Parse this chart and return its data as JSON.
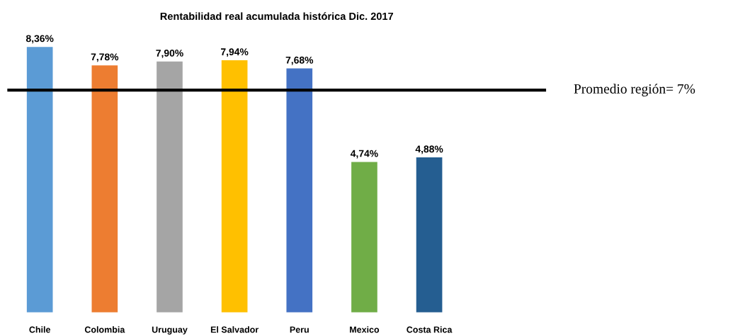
{
  "chart_data": {
    "type": "bar",
    "title": "Rentabilidad real acumulada histórica Dic. 2017",
    "categories": [
      "Chile",
      "Colombia",
      "Uruguay",
      "El Salvador",
      "Peru",
      "Mexico",
      "Costa Rica"
    ],
    "values": [
      8.36,
      7.78,
      7.9,
      7.94,
      7.68,
      4.74,
      4.88
    ],
    "colors": [
      "#5b9bd5",
      "#ed7d31",
      "#a5a5a5",
      "#ffc000",
      "#4472c4",
      "#70ad47",
      "#255e91"
    ],
    "value_labels": [
      "8,36%",
      "7,78%",
      "7,90%",
      "7,94%",
      "7,68%",
      "4,74%",
      "4,88%"
    ],
    "ref_lines": [
      {
        "axis": "y",
        "value": 7,
        "label": "Promedio región= 7%",
        "color": "#000000"
      }
    ],
    "grid": false,
    "legend": false
  }
}
